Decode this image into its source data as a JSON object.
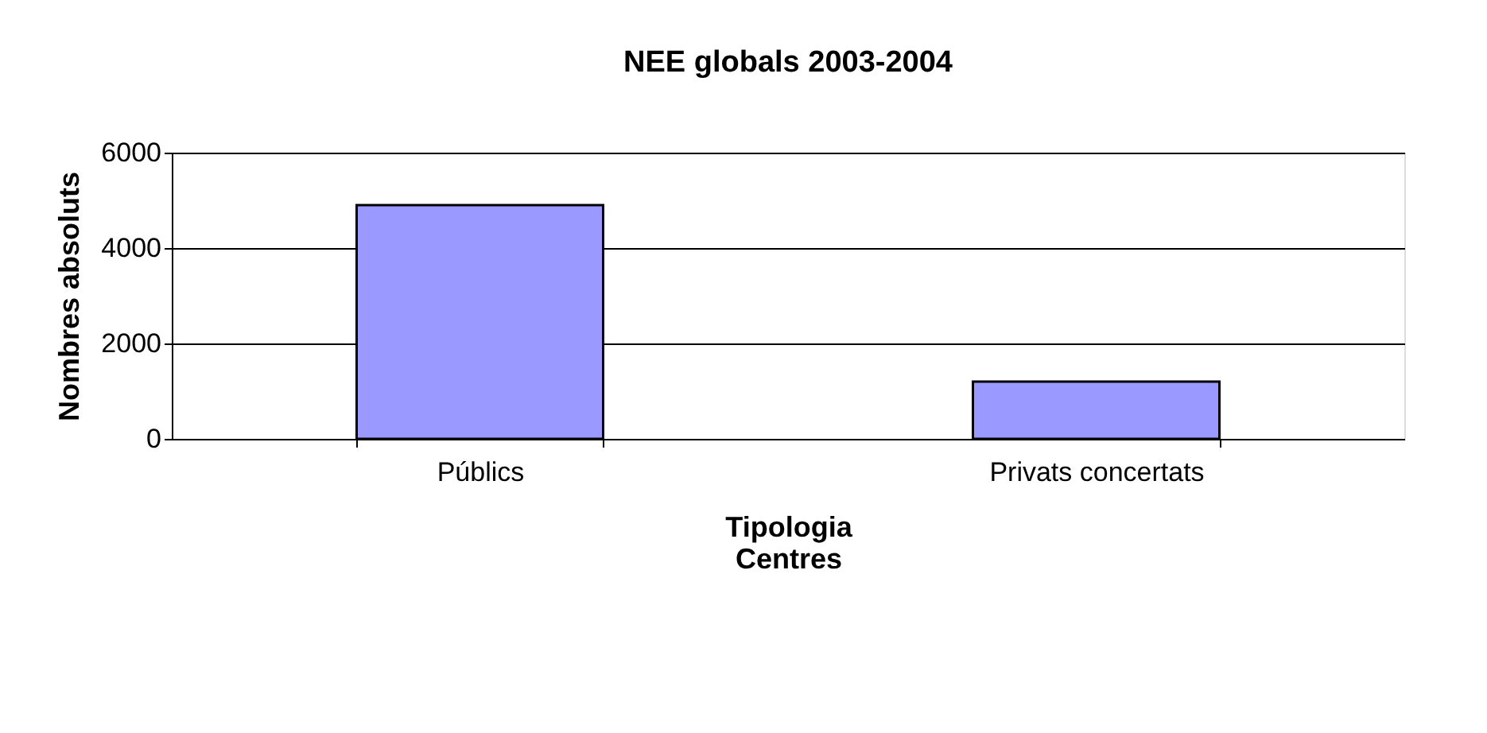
{
  "chart_data": {
    "type": "bar",
    "title": "NEE globals 2003-2004",
    "xlabel": "Tipologia Centres",
    "ylabel": "Nombres absoluts",
    "categories": [
      "Públics",
      "Privats concertats"
    ],
    "values": [
      4900,
      1200
    ],
    "color": "#9999ff",
    "ylim": [
      0,
      6000
    ],
    "yticks": [
      0,
      2000,
      4000,
      6000
    ],
    "grid": "y"
  }
}
